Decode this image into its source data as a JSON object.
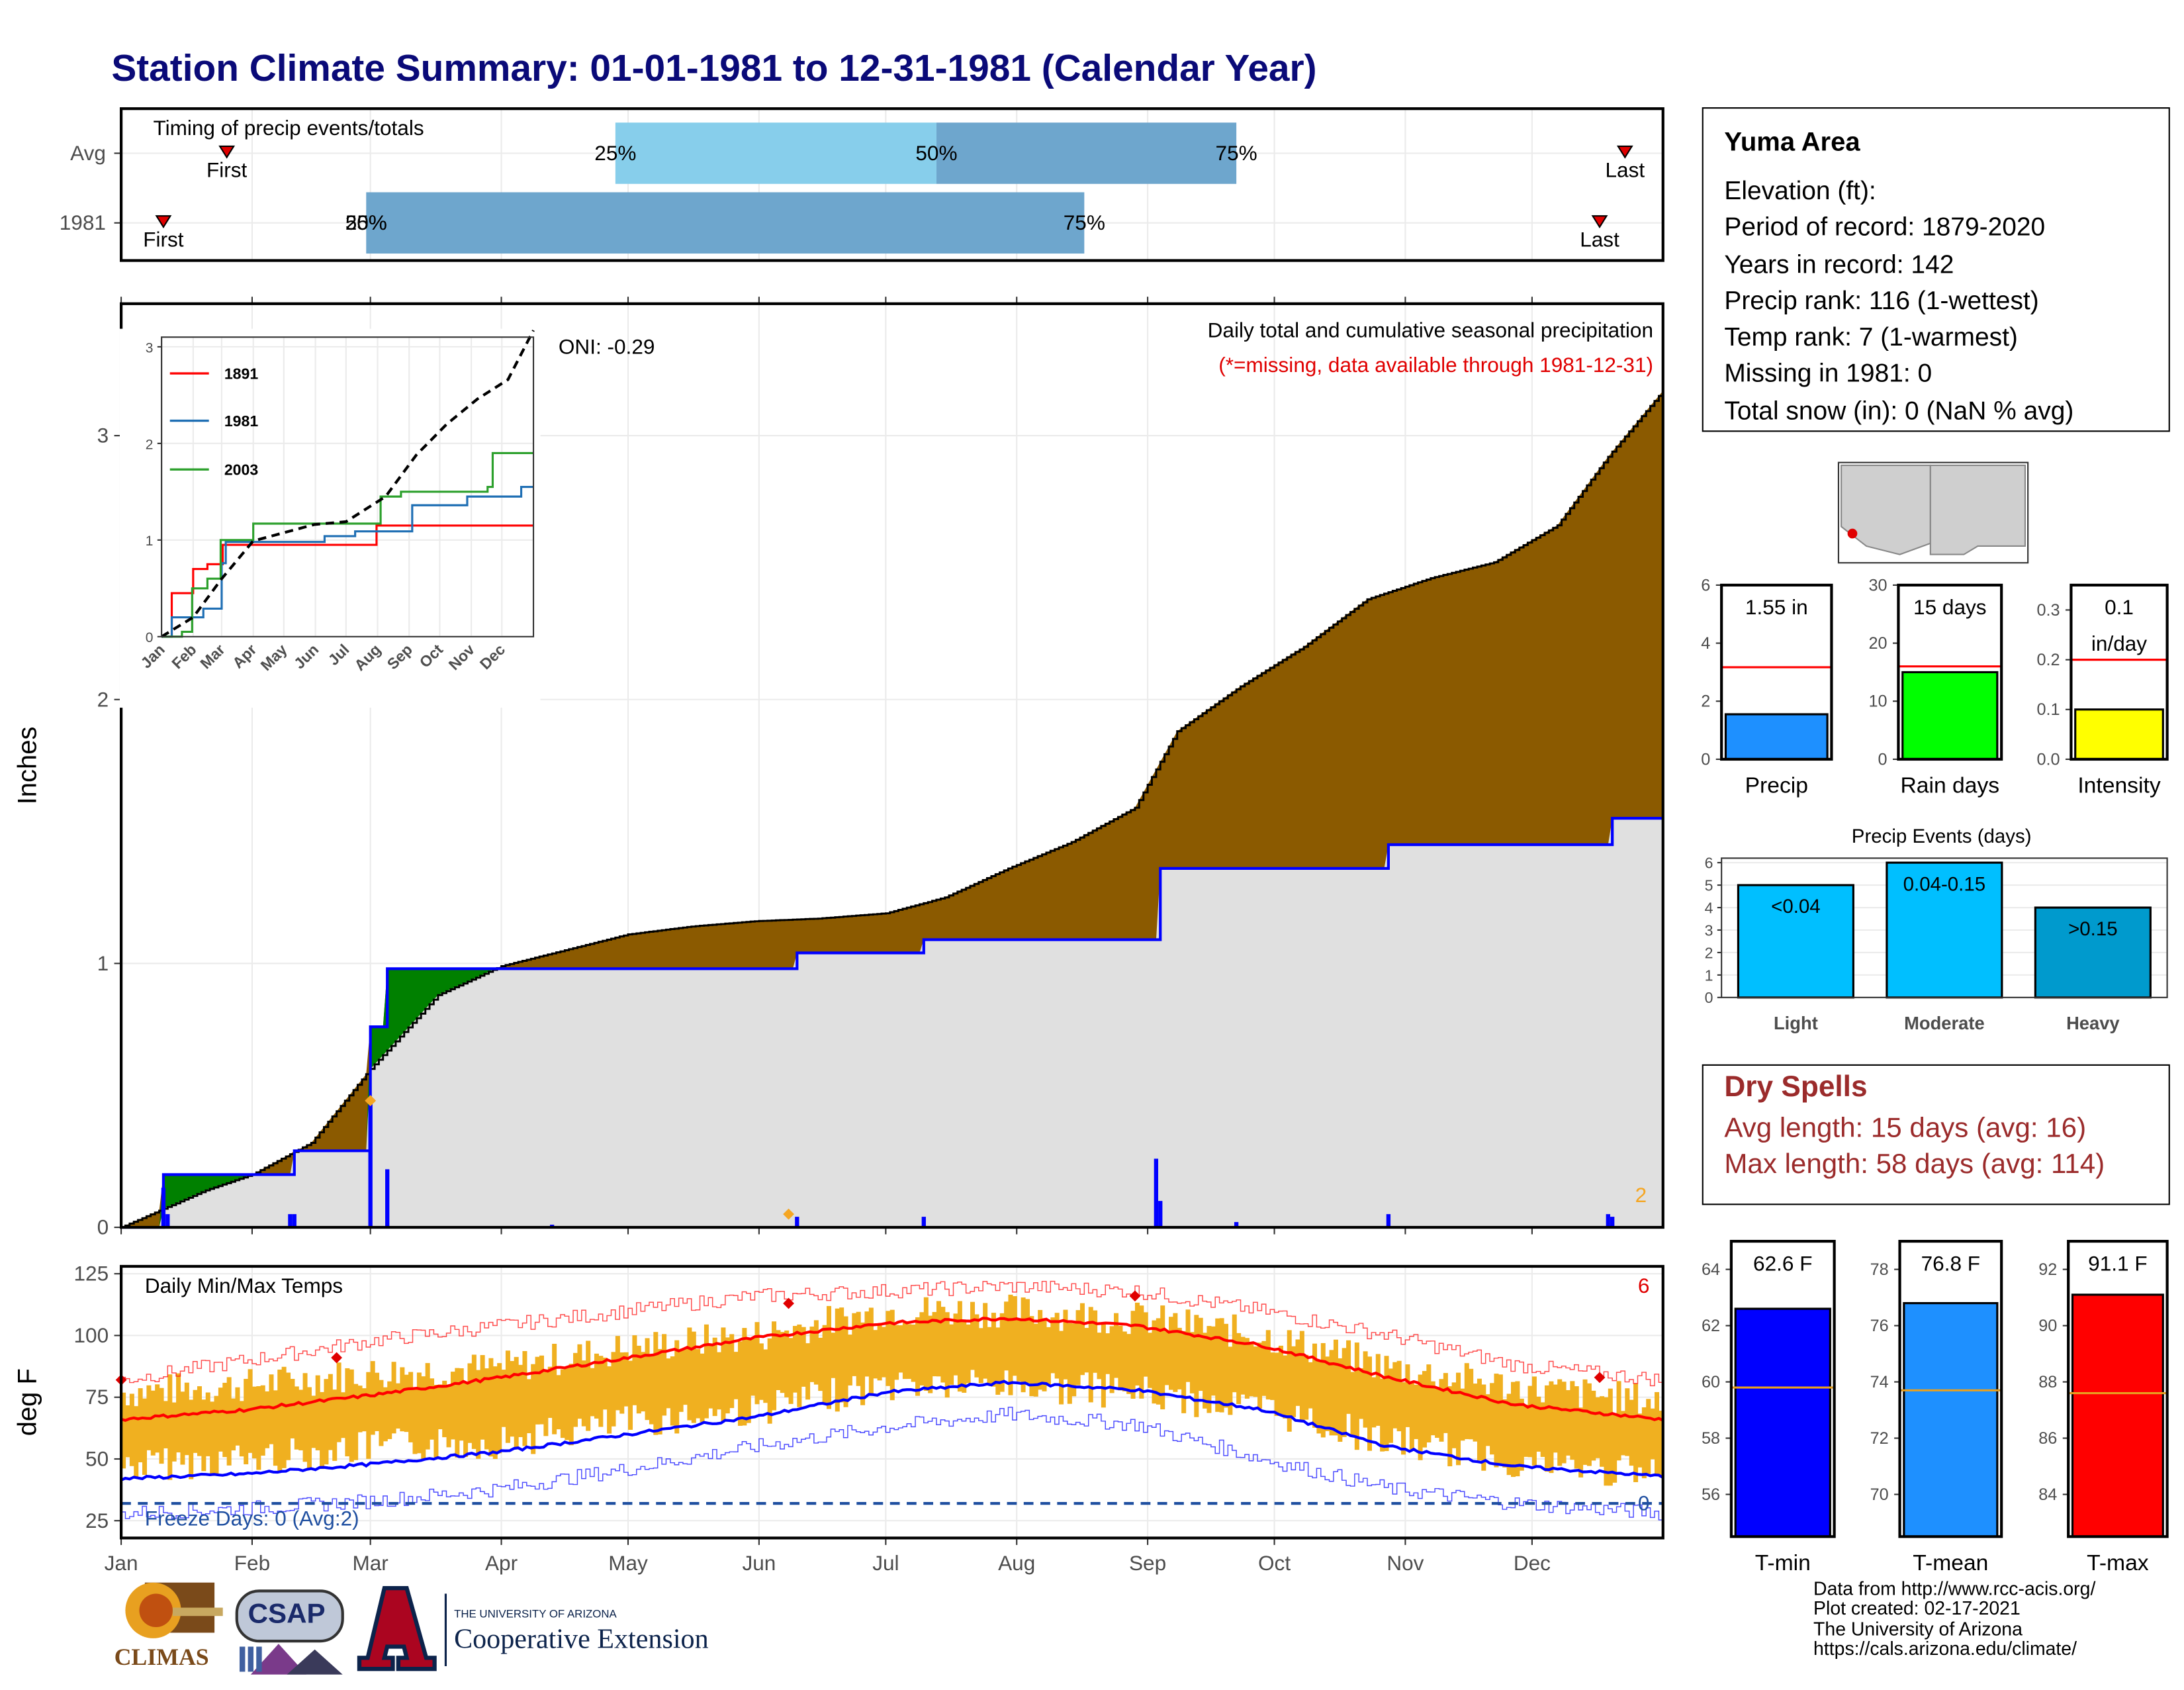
{
  "title": "Station Climate Summary: 01-01-1981 to 12-31-1981 (Calendar Year)",
  "station": {
    "name": "Yuma Area",
    "rows": [
      "Elevation (ft):",
      "Period of record: 1879-2020",
      "Years in record: 142",
      "Precip rank: 116 (1-wettest)",
      "Temp rank: 7 (1-warmest)",
      "Missing in 1981: 0",
      "Total snow (in): 0 (NaN % avg)"
    ]
  },
  "dry_spells": {
    "title": "Dry Spells",
    "avg": "Avg length: 15 days (avg: 16)",
    "max": "Max length: 58 days (avg: 114)"
  },
  "credits": [
    "Data from http://www.rcc-acis.org/",
    "Plot created: 02-17-2021",
    "The University of Arizona",
    "https://cals.arizona.edu/climate/"
  ],
  "logos": {
    "climas": "CLIMAS",
    "csap": "CSAP",
    "ua_top": "THE UNIVERSITY OF ARIZONA",
    "ua_bottom": "Cooperative Extension"
  },
  "months": [
    "Jan",
    "Feb",
    "Mar",
    "Apr",
    "May",
    "Jun",
    "Jul",
    "Aug",
    "Sep",
    "Oct",
    "Nov",
    "Dec"
  ],
  "colors": {
    "title": "#0a0a78",
    "cumulative_1981": "#0000ff",
    "cumulative_avg_fill": "#8b5a00",
    "above_avg_fill": "#008000",
    "daily_bar": "#0000ff",
    "dry_spell_text": "#9b2b2b",
    "temp_max": "#ff0000",
    "temp_min": "#0000ff",
    "temp_bar": "#f0b020"
  },
  "chart_data": [
    {
      "id": "timing",
      "type": "bar",
      "title": "Timing of precip events/totals",
      "categories": [
        "Avg",
        "1981"
      ],
      "rows": [
        {
          "label": "Avg",
          "first_day": 25,
          "q25_day": 117,
          "q50_day": 193,
          "q75_day": 264,
          "last_day": 356,
          "labels": {
            "first": "First",
            "q25": "25%",
            "q50": "50%",
            "q75": "75%",
            "last": "Last"
          }
        },
        {
          "label": "1981",
          "first_day": 10,
          "q25_day": 58,
          "q50_day": 58,
          "q75_day": 228,
          "last_day": 350,
          "labels": {
            "first": "First",
            "q25": "25%",
            "q50": "50%",
            "q75": "75%",
            "last": "Last"
          }
        }
      ],
      "xlim": [
        0,
        365
      ]
    },
    {
      "id": "cumulative",
      "type": "area",
      "title": "Daily total and cumulative seasonal precipitation",
      "subtitle": "(*=missing, data available through 1981-12-31)",
      "ylabel": "Inches",
      "annotation": "ONI: -0.29",
      "corner_note": "2",
      "ylim": [
        0,
        3.5
      ],
      "yticks": [
        0,
        1,
        2,
        3
      ],
      "avg_cumulative": [
        [
          0,
          0
        ],
        [
          10,
          0.07
        ],
        [
          20,
          0.14
        ],
        [
          31,
          0.2
        ],
        [
          45,
          0.32
        ],
        [
          59,
          0.6
        ],
        [
          75,
          0.88
        ],
        [
          90,
          0.99
        ],
        [
          105,
          1.05
        ],
        [
          120,
          1.11
        ],
        [
          135,
          1.14
        ],
        [
          150,
          1.16
        ],
        [
          165,
          1.17
        ],
        [
          181,
          1.19
        ],
        [
          195,
          1.25
        ],
        [
          210,
          1.36
        ],
        [
          225,
          1.46
        ],
        [
          240,
          1.59
        ],
        [
          250,
          1.88
        ],
        [
          265,
          2.05
        ],
        [
          280,
          2.2
        ],
        [
          295,
          2.38
        ],
        [
          310,
          2.46
        ],
        [
          325,
          2.52
        ],
        [
          340,
          2.66
        ],
        [
          352,
          2.92
        ],
        [
          365,
          3.17
        ]
      ],
      "cumulative_1981": [
        [
          0,
          0
        ],
        [
          10,
          0.2
        ],
        [
          40,
          0.2
        ],
        [
          41,
          0.29
        ],
        [
          58,
          0.29
        ],
        [
          59,
          0.76
        ],
        [
          63,
          0.98
        ],
        [
          85,
          0.98
        ],
        [
          160,
          1.04
        ],
        [
          190,
          1.09
        ],
        [
          245,
          1.09
        ],
        [
          246,
          1.36
        ],
        [
          300,
          1.45
        ],
        [
          352,
          1.45
        ],
        [
          353,
          1.55
        ],
        [
          365,
          1.55
        ]
      ],
      "daily_1981": [
        [
          10,
          0.15
        ],
        [
          11,
          0.05
        ],
        [
          40,
          0.05
        ],
        [
          41,
          0.05
        ],
        [
          59,
          0.48
        ],
        [
          63,
          0.22
        ],
        [
          102,
          0.01
        ],
        [
          160,
          0.04
        ],
        [
          190,
          0.04
        ],
        [
          245,
          0.26
        ],
        [
          246,
          0.1
        ],
        [
          264,
          0.02
        ],
        [
          300,
          0.05
        ],
        [
          352,
          0.05
        ],
        [
          353,
          0.04
        ]
      ],
      "missing_markers": [
        [
          59,
          0.48
        ],
        [
          158,
          0.05
        ]
      ]
    },
    {
      "id": "inset",
      "type": "line",
      "xlabel": "",
      "ylim": [
        0,
        3.1
      ],
      "yticks": [
        0,
        1,
        2,
        3
      ],
      "series": [
        {
          "name": "1891",
          "color": "#ff0000",
          "values": [
            [
              0,
              0
            ],
            [
              10,
              0.45
            ],
            [
              30,
              0.45
            ],
            [
              31,
              0.7
            ],
            [
              45,
              0.75
            ],
            [
              60,
              0.95
            ],
            [
              210,
              0.95
            ],
            [
              211,
              1.15
            ],
            [
              365,
              1.15
            ]
          ]
        },
        {
          "name": "1981",
          "color": "#1f6fb4",
          "values": [
            [
              0,
              0
            ],
            [
              10,
              0.2
            ],
            [
              40,
              0.2
            ],
            [
              41,
              0.29
            ],
            [
              58,
              0.29
            ],
            [
              59,
              0.76
            ],
            [
              63,
              0.98
            ],
            [
              85,
              0.98
            ],
            [
              160,
              1.04
            ],
            [
              190,
              1.09
            ],
            [
              245,
              1.09
            ],
            [
              246,
              1.36
            ],
            [
              300,
              1.45
            ],
            [
              352,
              1.45
            ],
            [
              353,
              1.55
            ],
            [
              365,
              1.55
            ]
          ]
        },
        {
          "name": "2003",
          "color": "#2ca02c",
          "values": [
            [
              0,
              0
            ],
            [
              20,
              0.05
            ],
            [
              30,
              0.5
            ],
            [
              45,
              0.6
            ],
            [
              58,
              1.0
            ],
            [
              90,
              1.17
            ],
            [
              200,
              1.17
            ],
            [
              215,
              1.45
            ],
            [
              235,
              1.5
            ],
            [
              320,
              1.55
            ],
            [
              325,
              1.9
            ],
            [
              365,
              1.9
            ]
          ]
        },
        {
          "name": "",
          "color": "#000000",
          "dashed": true,
          "values": [
            [
              0,
              0
            ],
            [
              31,
              0.2
            ],
            [
              59,
              0.6
            ],
            [
              90,
              0.99
            ],
            [
              150,
              1.16
            ],
            [
              181,
              1.19
            ],
            [
              220,
              1.45
            ],
            [
              250,
              1.88
            ],
            [
              280,
              2.2
            ],
            [
              310,
              2.46
            ],
            [
              340,
              2.66
            ],
            [
              365,
              3.17
            ]
          ]
        }
      ]
    },
    {
      "id": "temps",
      "type": "line",
      "title": "Daily Min/Max Temps",
      "ylabel": "deg F",
      "ylim": [
        18,
        128
      ],
      "yticks": [
        25,
        50,
        75,
        100,
        125
      ],
      "corner_note": "6",
      "freeze_label": "Freeze Days: 0 (Avg:2)",
      "freeze_count": "0",
      "freeze_line": 32,
      "avg_max": [
        [
          0,
          66
        ],
        [
          30,
          70
        ],
        [
          60,
          76
        ],
        [
          90,
          83
        ],
        [
          120,
          91
        ],
        [
          150,
          99
        ],
        [
          181,
          105
        ],
        [
          210,
          107
        ],
        [
          240,
          104
        ],
        [
          270,
          96
        ],
        [
          300,
          83
        ],
        [
          330,
          72
        ],
        [
          365,
          66
        ]
      ],
      "avg_min": [
        [
          0,
          42
        ],
        [
          30,
          44
        ],
        [
          60,
          48
        ],
        [
          90,
          53
        ],
        [
          120,
          60
        ],
        [
          150,
          67
        ],
        [
          181,
          77
        ],
        [
          210,
          81
        ],
        [
          240,
          78
        ],
        [
          270,
          70
        ],
        [
          300,
          55
        ],
        [
          330,
          47
        ],
        [
          365,
          43
        ]
      ],
      "record_max": [
        [
          0,
          82
        ],
        [
          30,
          90
        ],
        [
          60,
          98
        ],
        [
          90,
          104
        ],
        [
          120,
          110
        ],
        [
          150,
          116
        ],
        [
          181,
          118
        ],
        [
          210,
          120
        ],
        [
          240,
          118
        ],
        [
          270,
          110
        ],
        [
          300,
          100
        ],
        [
          330,
          88
        ],
        [
          365,
          82
        ]
      ],
      "record_min": [
        [
          0,
          28
        ],
        [
          30,
          30
        ],
        [
          60,
          33
        ],
        [
          90,
          38
        ],
        [
          120,
          46
        ],
        [
          150,
          55
        ],
        [
          181,
          63
        ],
        [
          210,
          68
        ],
        [
          240,
          64
        ],
        [
          270,
          50
        ],
        [
          300,
          38
        ],
        [
          330,
          32
        ],
        [
          365,
          28
        ]
      ],
      "observed_range_mid": [
        [
          0,
          62
        ],
        [
          30,
          65
        ],
        [
          60,
          70
        ],
        [
          90,
          72
        ],
        [
          120,
          80
        ],
        [
          150,
          85
        ],
        [
          181,
          95
        ],
        [
          210,
          95
        ],
        [
          240,
          92
        ],
        [
          270,
          85
        ],
        [
          300,
          72
        ],
        [
          330,
          64
        ],
        [
          365,
          58
        ]
      ],
      "record_markers": [
        [
          0,
          82
        ],
        [
          51,
          91
        ],
        [
          158,
          113
        ],
        [
          240,
          116
        ],
        [
          350,
          83
        ]
      ]
    },
    {
      "id": "precip_total",
      "type": "bar",
      "categories": [
        "Precip"
      ],
      "values": [
        1.55
      ],
      "avg_line": 3.17,
      "value_label": "1.55 in",
      "ylim": [
        0,
        6
      ],
      "yticks": [
        0,
        2,
        4,
        6
      ]
    },
    {
      "id": "rain_days",
      "type": "bar",
      "categories": [
        "Rain days"
      ],
      "values": [
        15
      ],
      "avg_line": 16,
      "value_label": "15 days",
      "ylim": [
        0,
        30
      ],
      "yticks": [
        0,
        10,
        20,
        30
      ]
    },
    {
      "id": "intensity",
      "type": "bar",
      "categories": [
        "Intensity"
      ],
      "values": [
        0.1
      ],
      "avg_line": 0.2,
      "value_label_1": "0.1",
      "value_label_2": "in/day",
      "ylim": [
        0,
        0.35
      ],
      "yticks": [
        0.0,
        0.1,
        0.2,
        0.3
      ]
    },
    {
      "id": "precip_events",
      "type": "bar",
      "title": "Precip Events (days)",
      "categories": [
        "Light",
        "Moderate",
        "Heavy"
      ],
      "values": [
        5,
        6,
        4
      ],
      "bar_labels": [
        "<0.04",
        "0.04-0.15",
        ">0.15"
      ],
      "ylim": [
        0,
        6.2
      ],
      "yticks": [
        0,
        1,
        2,
        3,
        4,
        5,
        6
      ]
    },
    {
      "id": "tmin",
      "type": "bar",
      "categories": [
        "T-min"
      ],
      "values": [
        62.6
      ],
      "avg_line": 59.8,
      "value_label": "62.6 F",
      "ylim": [
        54.5,
        65
      ],
      "yticks": [
        56,
        58,
        60,
        62,
        64
      ]
    },
    {
      "id": "tmean",
      "type": "bar",
      "categories": [
        "T-mean"
      ],
      "values": [
        76.8
      ],
      "avg_line": 73.7,
      "value_label": "76.8 F",
      "ylim": [
        68.5,
        79
      ],
      "yticks": [
        70,
        72,
        74,
        76,
        78
      ]
    },
    {
      "id": "tmax",
      "type": "bar",
      "categories": [
        "T-max"
      ],
      "values": [
        91.1
      ],
      "avg_line": 87.6,
      "value_label": "91.1 F",
      "ylim": [
        82.5,
        93
      ],
      "yticks": [
        84,
        86,
        88,
        90,
        92
      ]
    }
  ]
}
